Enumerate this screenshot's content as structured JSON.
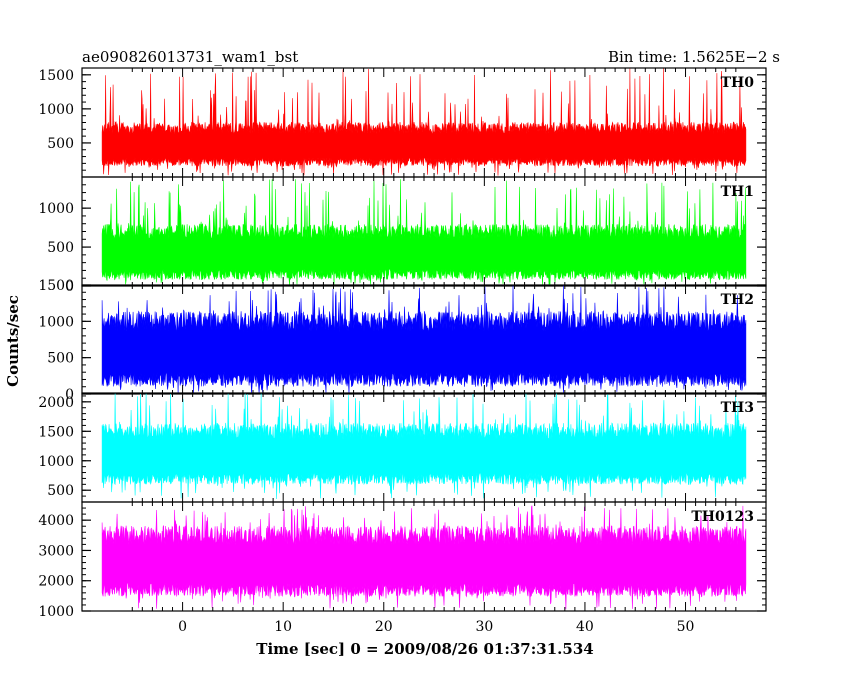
{
  "header": {
    "left_title": "ae090826013731_wam1_bst",
    "right_title": "Bin time: 1.5625E−2 s"
  },
  "chart_data": {
    "type": "line",
    "title": "ae090826013731_wam1_bst",
    "subtitle": "Bin time: 1.5625E−2 s",
    "xlabel": "Time [sec] 0 = 2009/08/26 01:37:31.534",
    "ylabel": "Counts/sec",
    "xlim": [
      -10,
      58
    ],
    "x_data_range": [
      -8,
      56
    ],
    "bin_time_s": 0.015625,
    "x_ticks": [
      0,
      10,
      20,
      30,
      40,
      50
    ],
    "grid": false,
    "legend": "none",
    "panels": [
      {
        "name": "TH0",
        "color": "#ff0000",
        "ylim": [
          0,
          1600
        ],
        "yticks": [
          500,
          1000,
          1500
        ],
        "typical_low": 220,
        "typical_high": 720,
        "min": 20,
        "max": 1600
      },
      {
        "name": "TH1",
        "color": "#00ff00",
        "ylim": [
          0,
          1400
        ],
        "yticks": [
          0,
          500,
          1000
        ],
        "typical_low": 150,
        "typical_high": 700,
        "min": 0,
        "max": 1400
      },
      {
        "name": "TH2",
        "color": "#0000ff",
        "ylim": [
          0,
          1500
        ],
        "yticks": [
          0,
          500,
          1000,
          1500
        ],
        "typical_low": 200,
        "typical_high": 1000,
        "min": 0,
        "max": 1500
      },
      {
        "name": "TH3",
        "color": "#00ffff",
        "ylim": [
          300,
          2150
        ],
        "yticks": [
          500,
          1000,
          1500,
          2000
        ],
        "typical_low": 700,
        "typical_high": 1500,
        "min": 350,
        "max": 2150
      },
      {
        "name": "TH0123",
        "color": "#ff00ff",
        "ylim": [
          1000,
          4600
        ],
        "yticks": [
          1000,
          2000,
          3000,
          4000
        ],
        "typical_low": 1700,
        "typical_high": 3500,
        "min": 1050,
        "max": 4500
      }
    ]
  }
}
